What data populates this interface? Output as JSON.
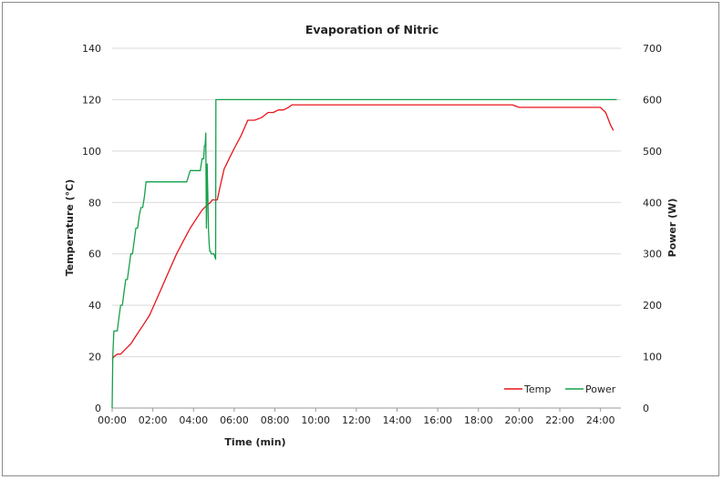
{
  "chart_data": {
    "type": "line",
    "title": "Evaporation of Nitric",
    "xlabel": "Time (min)",
    "ylabel": "Temperature (°C)",
    "y2label": "Power (W)",
    "xlim": [
      0,
      1500
    ],
    "ylim": [
      0,
      140
    ],
    "y2lim": [
      0,
      700
    ],
    "x_tick_values": [
      0,
      120,
      240,
      360,
      480,
      600,
      720,
      840,
      960,
      1080,
      1200,
      1320,
      1440
    ],
    "x_tick_labels": [
      "00:00",
      "02:00",
      "04:00",
      "06:00",
      "08:00",
      "10:00",
      "12:00",
      "14:00",
      "16:00",
      "18:00",
      "20:00",
      "22:00",
      "24:00"
    ],
    "y_ticks": [
      0,
      20,
      40,
      60,
      80,
      100,
      120,
      140
    ],
    "y2_ticks": [
      0,
      100,
      200,
      300,
      400,
      500,
      600,
      700
    ],
    "grid": "horizontal",
    "legend_position": "bottom-right",
    "series": [
      {
        "name": "Temp",
        "axis": "left",
        "color": "#e8141c",
        "x": [
          0,
          5,
          15,
          25,
          40,
          55,
          70,
          90,
          110,
          130,
          150,
          170,
          190,
          210,
          230,
          250,
          265,
          280,
          290,
          295,
          305,
          310,
          318,
          330,
          345,
          360,
          380,
          400,
          420,
          440,
          450,
          460,
          475,
          490,
          505,
          520,
          530,
          540,
          550,
          555,
          560,
          570,
          590,
          620,
          660,
          700,
          740,
          780,
          820,
          850,
          880,
          1000,
          1100,
          1180,
          1200,
          1240,
          1300,
          1360,
          1400,
          1420,
          1440,
          1455,
          1470,
          1478
        ],
        "y": [
          19,
          20,
          21,
          21,
          23,
          25,
          28,
          32,
          36,
          42,
          48,
          54,
          60,
          65,
          70,
          74,
          77,
          79,
          80,
          81,
          81,
          81,
          86,
          93,
          97,
          101,
          106,
          112,
          112,
          113,
          114,
          115,
          115,
          116,
          116,
          117,
          118,
          118,
          118,
          118,
          118,
          118,
          118,
          118,
          118,
          118,
          118,
          118,
          118,
          118,
          118,
          118,
          118,
          118,
          117,
          117,
          117,
          117,
          117,
          117,
          117,
          115,
          110,
          108
        ]
      },
      {
        "name": "Power",
        "axis": "right",
        "color": "#15a04a",
        "x": [
          0,
          2,
          5,
          8,
          15,
          20,
          25,
          30,
          35,
          40,
          45,
          50,
          55,
          60,
          65,
          70,
          75,
          80,
          85,
          90,
          95,
          100,
          110,
          120,
          140,
          160,
          190,
          220,
          230,
          240,
          250,
          260,
          265,
          270,
          272,
          274,
          275,
          276,
          278,
          280,
          282,
          284,
          286,
          288,
          290,
          292,
          295,
          300,
          305,
          306,
          310,
          320,
          340,
          400,
          500,
          700,
          900,
          1100,
          1300,
          1450,
          1488
        ],
        "y": [
          0,
          100,
          150,
          150,
          150,
          175,
          200,
          200,
          225,
          250,
          250,
          275,
          300,
          300,
          325,
          350,
          350,
          375,
          390,
          390,
          410,
          440,
          440,
          440,
          440,
          440,
          440,
          440,
          462,
          462,
          462,
          462,
          485,
          485,
          510,
          510,
          520,
          535,
          350,
          475,
          420,
          350,
          320,
          305,
          305,
          300,
          300,
          300,
          290,
          600,
          600,
          600,
          600,
          600,
          600,
          600,
          600,
          600,
          600,
          600,
          600
        ]
      }
    ]
  }
}
